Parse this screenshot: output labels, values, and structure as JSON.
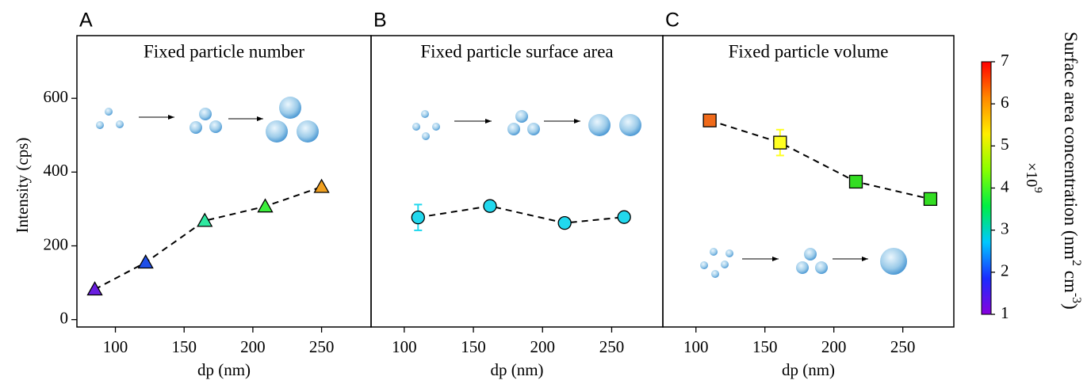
{
  "chart_data": [
    {
      "type": "scatter",
      "panel": "A",
      "title": "Fixed particle number",
      "ylabel": "Intensity (cps)",
      "xlabel": "dp (nm)",
      "x": [
        85,
        122,
        165,
        209,
        250
      ],
      "values": [
        82,
        155,
        268,
        307,
        360
      ],
      "colors": [
        "#6a1ee0",
        "#1f4fe8",
        "#2ee8a0",
        "#3cee3c",
        "#f0a020"
      ],
      "marker": "triangle",
      "trend": true,
      "xlim": [
        72,
        286
      ],
      "ylim": [
        -20,
        770
      ],
      "xticks": [
        100,
        150,
        200,
        250
      ],
      "yticks": [
        0,
        200,
        400,
        600
      ]
    },
    {
      "type": "scatter",
      "panel": "B",
      "title": "Fixed particle surface area",
      "xlabel": "dp (nm)",
      "x": [
        110,
        162,
        216,
        259
      ],
      "values": [
        277,
        308,
        262,
        278
      ],
      "errors": [
        35,
        null,
        null,
        null
      ],
      "colors": [
        "#22d8ee",
        "#22d8ee",
        "#22d8ee",
        "#22d8ee"
      ],
      "marker": "circle",
      "trend": true,
      "xlim": [
        76,
        287
      ],
      "ylim": [
        -20,
        770
      ],
      "xticks": [
        100,
        150,
        200,
        250
      ]
    },
    {
      "type": "scatter",
      "panel": "C",
      "title": "Fixed particle volume",
      "xlabel": "dp (nm)",
      "x": [
        110,
        161,
        216,
        270
      ],
      "values": [
        540,
        480,
        374,
        327
      ],
      "errors": [
        null,
        35,
        null,
        null
      ],
      "colors": [
        "#f06a1a",
        "#ffff22",
        "#33dd22",
        "#33dd22"
      ],
      "marker": "square",
      "trend": true,
      "xlim": [
        76,
        287
      ],
      "ylim": [
        -20,
        770
      ],
      "xticks": [
        100,
        150,
        200,
        250
      ]
    }
  ],
  "colorbar": {
    "label": "Surface area concentration (nm",
    "sup1": "2",
    "mid": " cm",
    "sup2": "-3",
    "end": ")",
    "multiplier": "×10",
    "exponent": "9",
    "lim": [
      1,
      7
    ],
    "ticks": [
      1,
      2,
      3,
      4,
      5,
      6,
      7
    ],
    "colors": [
      "#8800dd",
      "#1a2cff",
      "#00c8ff",
      "#00ee44",
      "#88ff00",
      "#ffee00",
      "#ff8800",
      "#ff0000"
    ]
  }
}
